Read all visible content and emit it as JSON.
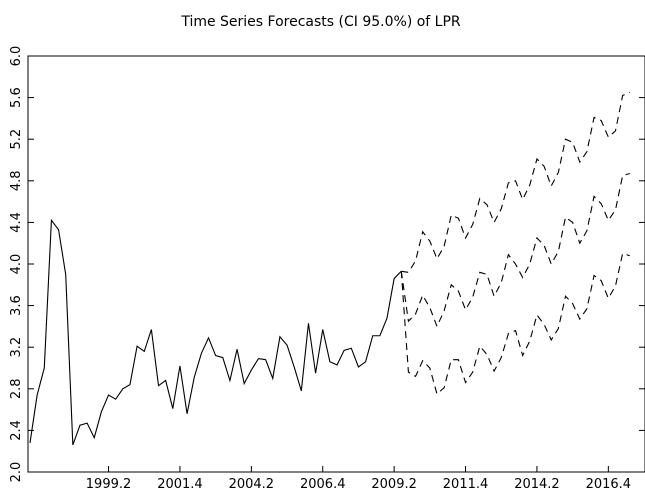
{
  "chart_data": {
    "type": "line",
    "title": "Time Series Forecasts (CI 95.0%) of LPR",
    "xlabel": "",
    "ylabel": "",
    "x_start": "1996.3",
    "periods_per_year": 4,
    "x_tick_labels": [
      "1999.2",
      "2001.4",
      "2004.2",
      "2006.4",
      "2009.2",
      "2011.4",
      "2014.2",
      "2016.4"
    ],
    "y_ticks": [
      "2.0",
      "2.4",
      "2.8",
      "3.2",
      "3.6",
      "4.0",
      "4.4",
      "4.8",
      "5.2",
      "5.6",
      "6.0"
    ],
    "ylim": [
      2.0,
      6.0
    ],
    "grid": false,
    "legend": "none",
    "series": [
      {
        "style": "solid",
        "values": [
          2.28,
          2.74,
          3.0,
          4.42,
          4.33,
          3.9,
          2.26,
          2.45,
          2.47,
          2.33,
          2.58,
          2.74,
          2.7,
          2.8,
          2.84,
          3.21,
          3.16,
          3.37,
          2.83,
          2.88,
          2.61,
          3.02,
          2.56,
          2.91,
          3.14,
          3.29,
          3.12,
          3.1,
          2.88,
          3.18,
          2.85,
          2.98,
          3.09,
          3.08,
          2.9,
          3.3,
          3.22,
          3.01,
          2.78,
          3.43,
          2.95,
          3.37,
          3.06,
          3.03,
          3.17,
          3.19,
          3.01,
          3.06,
          3.31,
          3.31,
          3.48,
          3.86,
          3.93
        ]
      },
      {
        "style": "dashed",
        "values": [
          3.93,
          3.45,
          3.52,
          3.7,
          3.58,
          3.4,
          3.55,
          3.8,
          3.74,
          3.56,
          3.68,
          3.92,
          3.9,
          3.69,
          3.82,
          4.09,
          4.0,
          3.87,
          4.0,
          4.25,
          4.18,
          4.0,
          4.12,
          4.45,
          4.4,
          4.2,
          4.32,
          4.65,
          4.58,
          4.42,
          4.52,
          4.85,
          4.87
        ]
      },
      {
        "style": "dashed",
        "values": [
          3.93,
          3.92,
          4.03,
          4.31,
          4.22,
          4.05,
          4.17,
          4.47,
          4.44,
          4.25,
          4.38,
          4.63,
          4.57,
          4.4,
          4.53,
          4.78,
          4.8,
          4.62,
          4.76,
          5.01,
          4.94,
          4.75,
          4.88,
          5.2,
          5.17,
          4.98,
          5.08,
          5.41,
          5.38,
          5.22,
          5.28,
          5.62,
          5.65
        ]
      },
      {
        "style": "dashed",
        "values": [
          3.93,
          2.96,
          2.92,
          3.07,
          3.0,
          2.75,
          2.81,
          3.08,
          3.08,
          2.86,
          2.96,
          3.21,
          3.13,
          2.97,
          3.1,
          3.33,
          3.36,
          3.12,
          3.26,
          3.51,
          3.42,
          3.27,
          3.38,
          3.69,
          3.62,
          3.47,
          3.57,
          3.89,
          3.84,
          3.67,
          3.79,
          4.1,
          4.08
        ]
      }
    ]
  }
}
